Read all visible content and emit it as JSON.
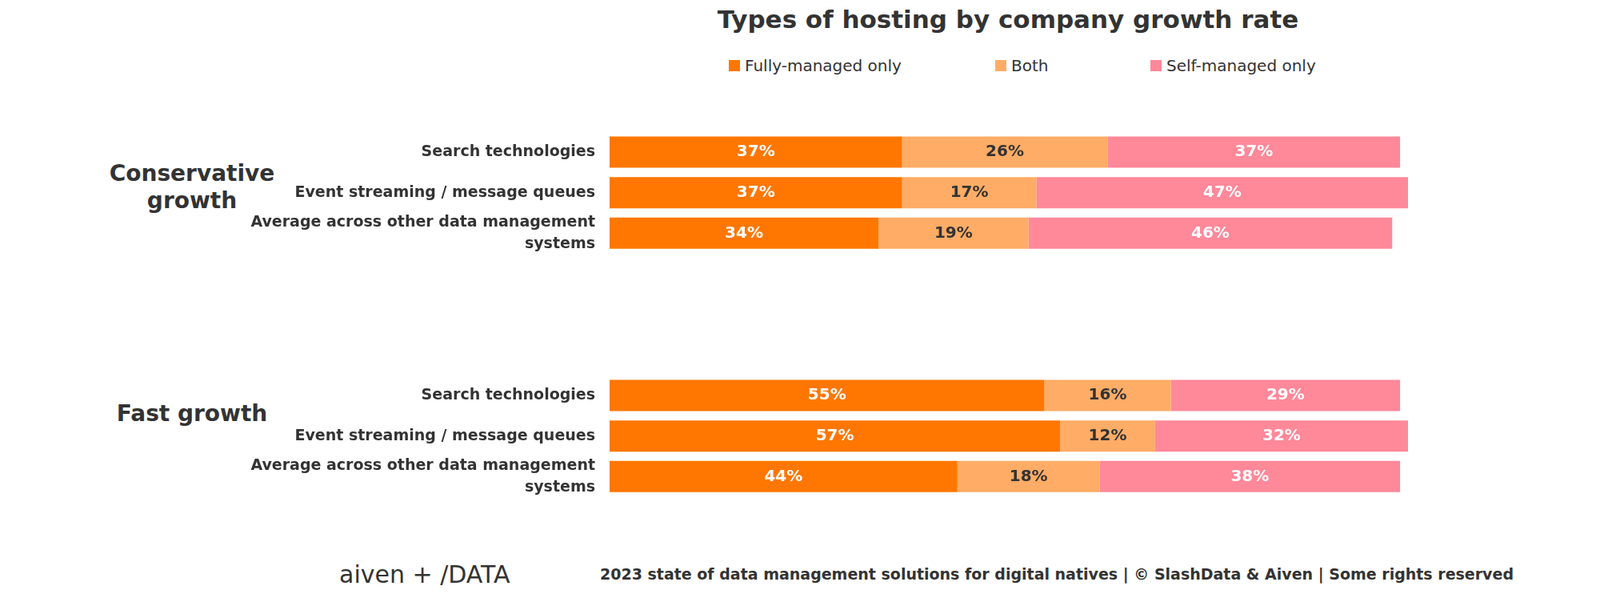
{
  "title": "Types of hosting by company growth rate",
  "footer": "2023 state of data management solutions for digital natives | © SlashData & Aiven | Some rights reserved",
  "logo_text": "aiven + /DATA",
  "chart_data": [
    {
      "type": "bar",
      "title": "Conservative growth",
      "orientation": "horizontal",
      "stacked": true,
      "data_labels": true,
      "tick_labels": "y",
      "grid": false,
      "legend": "top",
      "xlim": [
        0,
        101
      ],
      "categories": [
        "Search technologies",
        "Event streaming / message queues",
        "Average across other data management systems"
      ],
      "series": [
        {
          "name": "Fully-managed only",
          "color": "#ff7700",
          "values": [
            37,
            37,
            34
          ],
          "value_labels": [
            "37%",
            "37%",
            "34%"
          ]
        },
        {
          "name": "Both",
          "color": "#ffac66",
          "values": [
            26,
            17,
            19
          ],
          "value_labels": [
            "26%",
            "17%",
            "19%"
          ]
        },
        {
          "name": "Self-managed only",
          "color": "#ff8899",
          "values": [
            37,
            47,
            46
          ],
          "value_labels": [
            "37%",
            "47%",
            "46%"
          ]
        }
      ]
    },
    {
      "type": "bar",
      "title": "Fast growth",
      "orientation": "horizontal",
      "stacked": true,
      "data_labels": true,
      "tick_labels": "y",
      "grid": false,
      "xlim": [
        0,
        101
      ],
      "categories": [
        "Search technologies",
        "Event streaming / message queues",
        "Average across other data management systems"
      ],
      "series": [
        {
          "name": "Fully-managed only",
          "color": "#ff7700",
          "values": [
            55,
            57,
            44
          ],
          "value_labels": [
            "55%",
            "57%",
            "44%"
          ]
        },
        {
          "name": "Both",
          "color": "#ffac66",
          "values": [
            16,
            12,
            18
          ],
          "value_labels": [
            "16%",
            "12%",
            "18%"
          ]
        },
        {
          "name": "Self-managed only",
          "color": "#ff8899",
          "values": [
            29,
            32,
            38
          ],
          "value_labels": [
            "29%",
            "32%",
            "38%"
          ]
        }
      ]
    }
  ]
}
